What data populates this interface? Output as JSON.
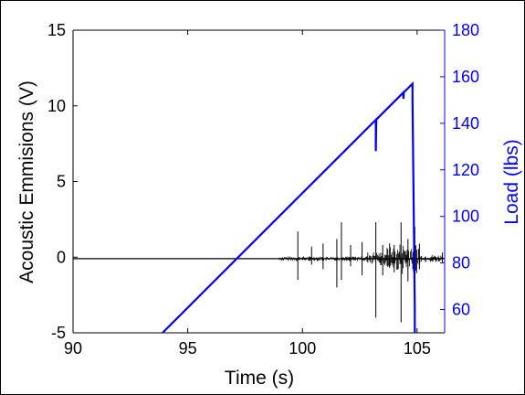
{
  "chart_data": {
    "type": "line",
    "xlabel": "Time (s)",
    "ylabel_left": "Acoustic Emmisions (V)",
    "ylabel_right": "Load (lbs)",
    "xlim": [
      90,
      106.2
    ],
    "ylim_left": [
      -5,
      15
    ],
    "ylim_right": [
      50,
      180
    ],
    "x_ticks": [
      "90",
      "95",
      "100",
      "105"
    ],
    "y_left_ticks": [
      "-5",
      "0",
      "5",
      "10",
      "15"
    ],
    "y_right_ticks": [
      "60",
      "80",
      "100",
      "120",
      "140",
      "160",
      "180"
    ],
    "grid": false,
    "colors": {
      "left_axis": "#000000",
      "right_axis": "#0000ff",
      "load_series": "#0000ff",
      "acoustic_series": "#000000"
    },
    "series": [
      {
        "axis": "right",
        "x": [
          93.9,
          103.2,
          103.2,
          103.22,
          104.4,
          104.4,
          104.42,
          104.8,
          104.8,
          104.9,
          104.9
        ],
        "y": [
          50,
          141.5,
          128,
          141.6,
          153.2,
          150.5,
          153.3,
          157.0,
          150,
          60,
          48
        ]
      },
      {
        "axis": "left",
        "baseline": -0.1,
        "spikes": [
          {
            "x": 99.8,
            "min": -1.5,
            "max": 1.7
          },
          {
            "x": 100.4,
            "min": -0.5,
            "max": 0.7
          },
          {
            "x": 100.9,
            "min": -0.8,
            "max": 0.9
          },
          {
            "x": 101.5,
            "min": -2.0,
            "max": 1.2
          },
          {
            "x": 101.7,
            "min": -1.5,
            "max": 2.3
          },
          {
            "x": 102.1,
            "min": -0.6,
            "max": 0.8
          },
          {
            "x": 102.6,
            "min": -1.2,
            "max": 1.0
          },
          {
            "x": 103.2,
            "min": -4.0,
            "max": 2.3
          },
          {
            "x": 103.5,
            "min": -1.2,
            "max": 0.8
          },
          {
            "x": 103.8,
            "min": -0.7,
            "max": 0.9
          },
          {
            "x": 104.0,
            "min": -1.0,
            "max": 0.8
          },
          {
            "x": 104.3,
            "min": -4.3,
            "max": 2.3
          },
          {
            "x": 104.6,
            "min": -1.6,
            "max": 1.2
          },
          {
            "x": 104.9,
            "min": -1.5,
            "max": 2.0
          },
          {
            "x": 105.1,
            "min": -0.8,
            "max": 0.9
          },
          {
            "x": 106.1,
            "min": -0.4,
            "max": 0.3
          }
        ]
      }
    ]
  }
}
